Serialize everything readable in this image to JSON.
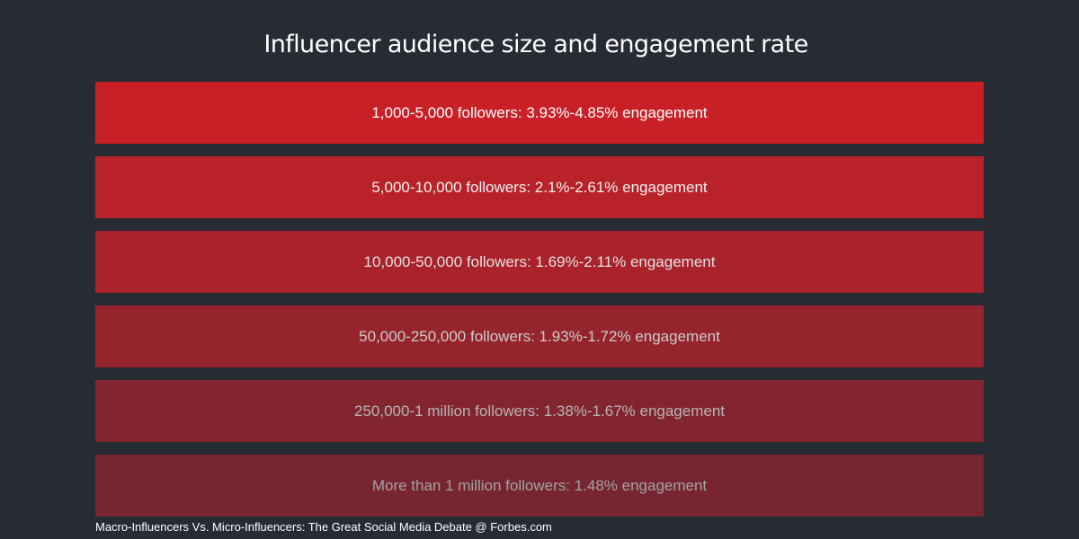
{
  "title": "Influencer audience size and engagement rate",
  "rows": [
    {
      "label": "1,000-5,000 followers: 3.93%-4.85% engagement",
      "bg": "#c92027",
      "fg": "#ffffff"
    },
    {
      "label": "5,000-10,000 followers: 2.1%-2.61% engagement",
      "bg": "#b92229",
      "fg": "#f2f2f2"
    },
    {
      "label": "10,000-50,000 followers: 1.69%-2.11% engagement",
      "bg": "#aa232b",
      "fg": "#e2e2e2"
    },
    {
      "label": "50,000-250,000 followers: 1.93%-1.72% engagement",
      "bg": "#96242d",
      "fg": "#cccccc"
    },
    {
      "label": "250,000-1 million followers: 1.38%-1.67% engagement",
      "bg": "#83252f",
      "fg": "#b5b5b5"
    },
    {
      "label": "More than 1 million followers: 1.48% engagement",
      "bg": "#762531",
      "fg": "#a3a3a3"
    }
  ],
  "source": "Macro-Influencers Vs. Micro-Influencers: The Great Social Media Debate @ Forbes.com"
}
